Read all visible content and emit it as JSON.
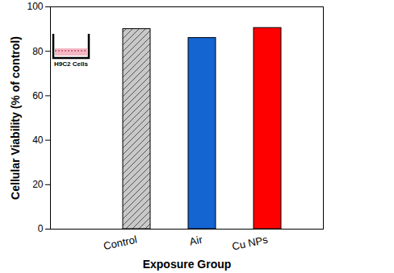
{
  "chart_data": {
    "type": "bar",
    "x_label": "Exposure Group",
    "y_label": "Cellular Viability (% of control)",
    "categories": [
      "Control",
      "Air",
      "Cu NPs"
    ],
    "values": [
      90,
      86,
      90.5
    ],
    "colors": [
      "#c8c8c8",
      "#1464d2",
      "#ff0000"
    ],
    "ylim": [
      0,
      100
    ],
    "yticks": [
      0,
      20,
      40,
      60,
      80,
      100
    ],
    "annotations": [
      "H9C2 Cells"
    ]
  }
}
